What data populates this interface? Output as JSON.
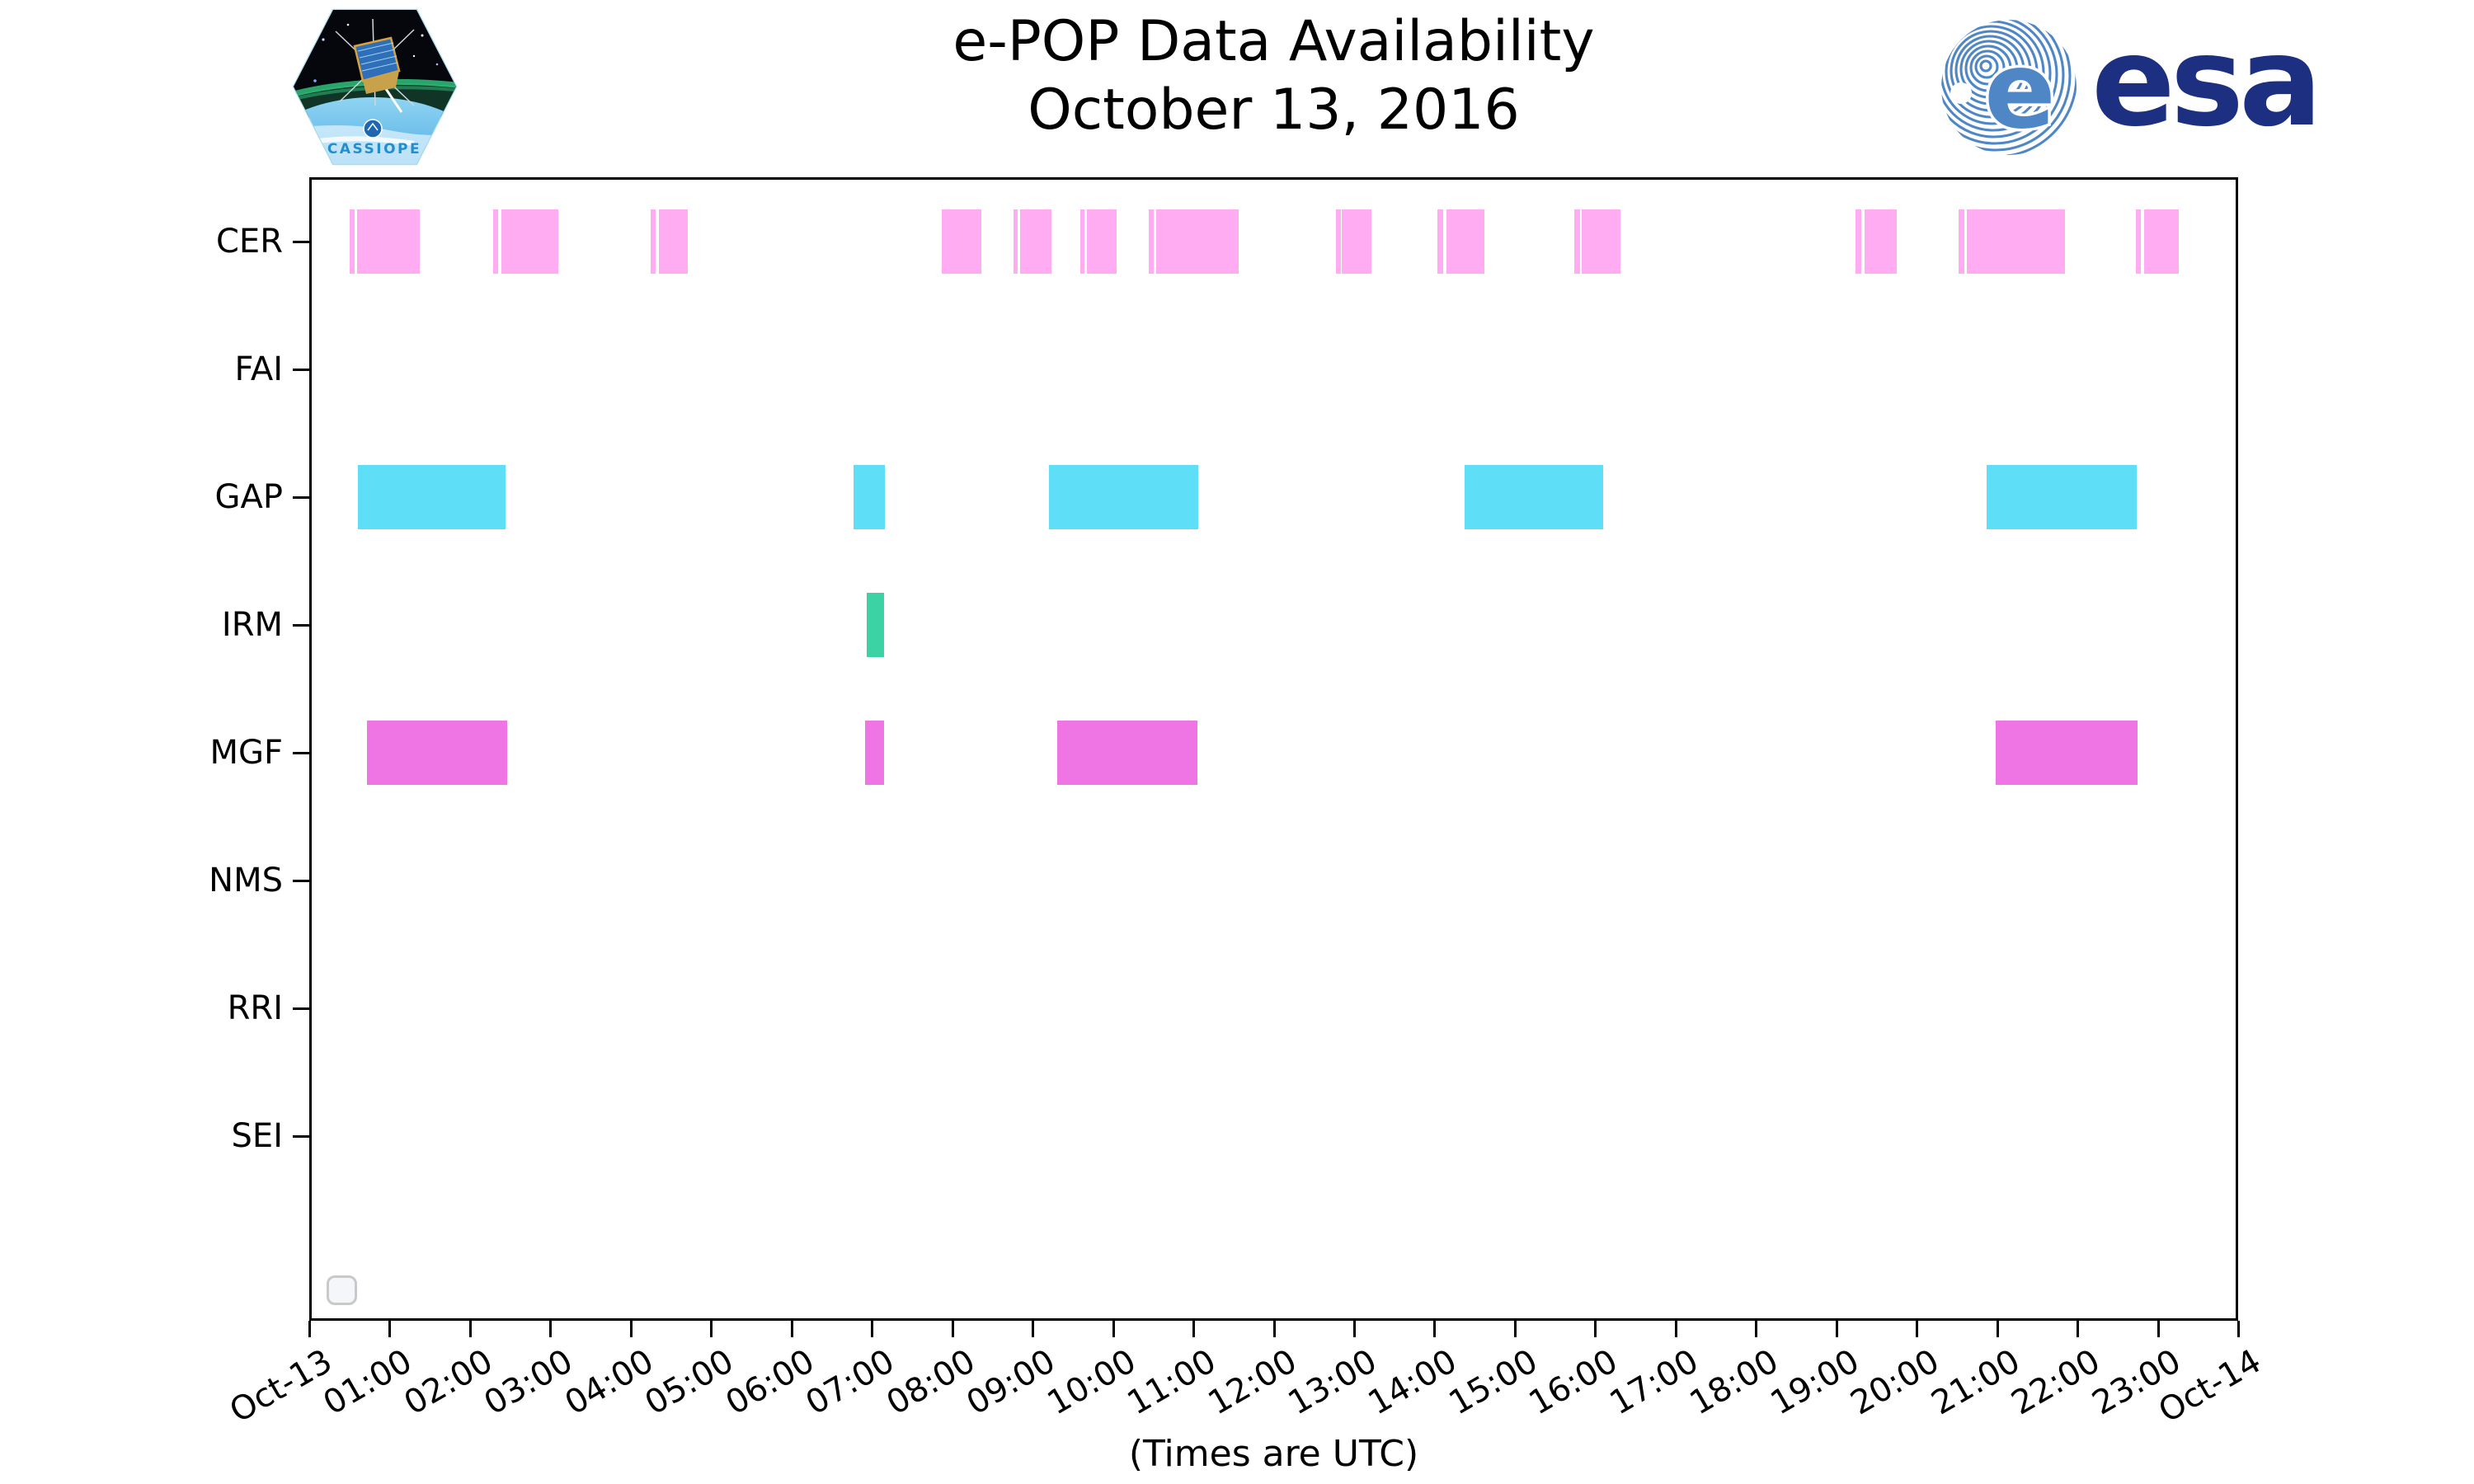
{
  "header": {
    "title_line1": "e-POP Data Availability",
    "title_line2": "October 13, 2016",
    "cassiope_label": "CASSIOPE",
    "esa_label": "esa"
  },
  "footer": {
    "xlabel": "(Times are UTC)"
  },
  "colors": {
    "cer_bar": "#ffacf2",
    "gap_bar": "#5fdef8",
    "irm_bar": "#3dd2a4",
    "mgf_bar": "#ef75e5",
    "axis": "#000000",
    "esa_navy": "#1c2f80",
    "esa_swirl": "#4f86c6",
    "cassiope_text": "#1f8fd0"
  },
  "chart_data": {
    "type": "timeline-bar",
    "title": "e-POP Data Availability",
    "subtitle": "October 13, 2016",
    "xlabel": "(Times are UTC)",
    "x_units": "hours UTC on 2016-10-13",
    "x_range_hours": [
      0,
      24
    ],
    "x_ticks": [
      "Oct-13",
      "01:00",
      "02:00",
      "03:00",
      "04:00",
      "05:00",
      "06:00",
      "07:00",
      "08:00",
      "09:00",
      "10:00",
      "11:00",
      "12:00",
      "13:00",
      "14:00",
      "15:00",
      "16:00",
      "17:00",
      "18:00",
      "19:00",
      "20:00",
      "21:00",
      "22:00",
      "23:00",
      "Oct-14"
    ],
    "categories": [
      "CER",
      "FAI",
      "GAP",
      "IRM",
      "MGF",
      "NMS",
      "RRI",
      "SEI"
    ],
    "grid": false,
    "legend": "empty-box-bottom-left",
    "series": [
      {
        "name": "CER",
        "color": "#ffacf2",
        "segments": [
          [
            0.5,
            0.56
          ],
          [
            0.59,
            1.37
          ],
          [
            2.29,
            2.35
          ],
          [
            2.39,
            3.1
          ],
          [
            4.25,
            4.31
          ],
          [
            4.35,
            4.71
          ],
          [
            7.87,
            8.36
          ],
          [
            8.76,
            8.81
          ],
          [
            8.84,
            9.23
          ],
          [
            9.59,
            9.64
          ],
          [
            9.68,
            10.05
          ],
          [
            10.45,
            10.51
          ],
          [
            10.54,
            11.57
          ],
          [
            12.77,
            12.83
          ],
          [
            12.85,
            13.22
          ],
          [
            14.04,
            14.11
          ],
          [
            14.15,
            14.62
          ],
          [
            15.74,
            15.81
          ],
          [
            15.83,
            16.31
          ],
          [
            19.24,
            19.31
          ],
          [
            19.35,
            19.75
          ],
          [
            20.52,
            20.59
          ],
          [
            20.62,
            21.84
          ],
          [
            22.73,
            22.79
          ],
          [
            22.83,
            23.26
          ]
        ]
      },
      {
        "name": "FAI",
        "color": "#ffacf2",
        "segments": []
      },
      {
        "name": "GAP",
        "color": "#5fdef8",
        "segments": [
          [
            0.61,
            2.45
          ],
          [
            6.77,
            7.16
          ],
          [
            9.2,
            11.06
          ],
          [
            14.38,
            16.1
          ],
          [
            20.87,
            22.74
          ]
        ]
      },
      {
        "name": "IRM",
        "color": "#3dd2a4",
        "segments": [
          [
            6.94,
            7.16
          ]
        ]
      },
      {
        "name": "MGF",
        "color": "#ef75e5",
        "segments": [
          [
            0.72,
            2.46
          ],
          [
            6.92,
            7.16
          ],
          [
            9.31,
            11.05
          ],
          [
            20.98,
            22.74
          ]
        ]
      },
      {
        "name": "NMS",
        "color": "#5fdef8",
        "segments": []
      },
      {
        "name": "RRI",
        "color": "#3dd2a4",
        "segments": []
      },
      {
        "name": "SEI",
        "color": "#ef75e5",
        "segments": []
      }
    ]
  }
}
